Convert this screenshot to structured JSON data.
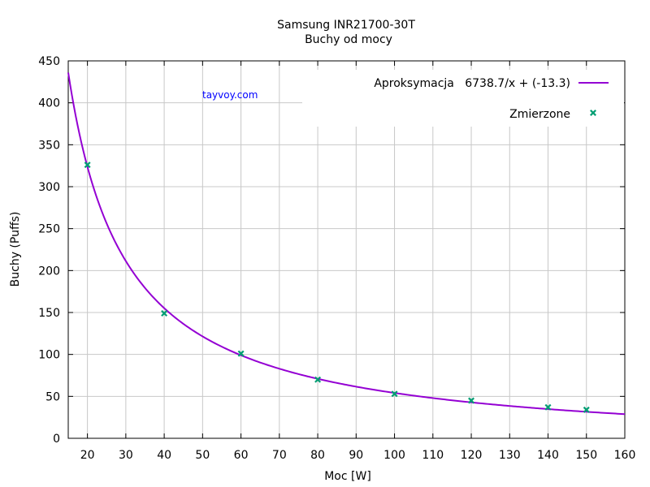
{
  "chart_data": {
    "type": "scatter",
    "title": "Samsung INR21700-30T",
    "subtitle": "Buchy od mocy",
    "xlabel": "Moc [W]",
    "ylabel": "Buchy (Puffs)",
    "xlim": [
      15,
      160
    ],
    "ylim": [
      0,
      450
    ],
    "x_ticks": [
      20,
      30,
      40,
      50,
      60,
      70,
      80,
      90,
      100,
      110,
      120,
      130,
      140,
      150,
      160
    ],
    "y_ticks": [
      0,
      50,
      100,
      150,
      200,
      250,
      300,
      350,
      400,
      450
    ],
    "grid": true,
    "legend_position": "top-right",
    "watermark": "tayvoy.com",
    "series": [
      {
        "name": "Aproksymacja   6738.7/x + (-13.3)",
        "kind": "line",
        "color": "#9400d3",
        "function": {
          "a": 6738.7,
          "b": -13.3
        }
      },
      {
        "name": "Zmierzone",
        "kind": "points",
        "color": "#009e73",
        "marker": "x",
        "x": [
          20,
          40,
          60,
          80,
          100,
          120,
          140,
          150
        ],
        "y": [
          326,
          149,
          101,
          70,
          53,
          45,
          37,
          34
        ]
      }
    ]
  }
}
